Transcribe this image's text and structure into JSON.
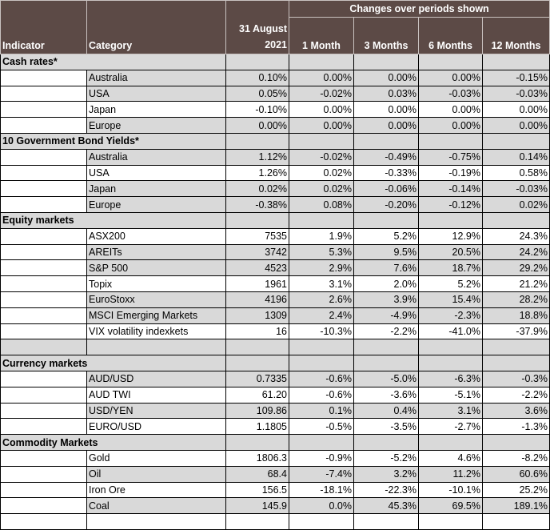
{
  "header": {
    "indicator_label": "Indicator",
    "category_label": "Category",
    "date_label_line1": "31 August",
    "date_label_line2": "2021",
    "changes_label": "Changes over periods shown",
    "periods": [
      "1 Month",
      "3 Months",
      "6 Months",
      "12 Months"
    ]
  },
  "sections": [
    {
      "title": "Cash rates*",
      "rows": [
        {
          "category": "Australia",
          "value": "0.10%",
          "changes": [
            "0.00%",
            "0.00%",
            "0.00%",
            "-0.15%"
          ]
        },
        {
          "category": "USA",
          "value": "0.05%",
          "changes": [
            "-0.02%",
            "0.03%",
            "-0.03%",
            "-0.03%"
          ]
        },
        {
          "category": "Japan",
          "value": "-0.10%",
          "changes": [
            "0.00%",
            "0.00%",
            "0.00%",
            "0.00%"
          ]
        },
        {
          "category": "Europe",
          "value": "0.00%",
          "changes": [
            "0.00%",
            "0.00%",
            "0.00%",
            "0.00%"
          ]
        }
      ]
    },
    {
      "title": "10 Government Bond Yields*",
      "rows": [
        {
          "category": "Australia",
          "value": "1.12%",
          "changes": [
            "-0.02%",
            "-0.49%",
            "-0.75%",
            "0.14%"
          ]
        },
        {
          "category": "USA",
          "value": "1.26%",
          "changes": [
            "0.02%",
            "-0.33%",
            "-0.19%",
            "0.58%"
          ]
        },
        {
          "category": "Japan",
          "value": "0.02%",
          "changes": [
            "0.02%",
            "-0.06%",
            "-0.14%",
            "-0.03%"
          ]
        },
        {
          "category": "Europe",
          "value": "-0.38%",
          "changes": [
            "0.08%",
            "-0.20%",
            "-0.12%",
            "0.02%"
          ]
        }
      ]
    },
    {
      "title": "Equity markets",
      "rows": [
        {
          "category": "ASX200",
          "value": "7535",
          "changes": [
            "1.9%",
            "5.2%",
            "12.9%",
            "24.3%"
          ]
        },
        {
          "category": "AREITs",
          "value": "3742",
          "changes": [
            "5.3%",
            "9.5%",
            "20.5%",
            "24.2%"
          ]
        },
        {
          "category": "S&P 500",
          "value": "4523",
          "changes": [
            "2.9%",
            "7.6%",
            "18.7%",
            "29.2%"
          ]
        },
        {
          "category": "Topix",
          "value": "1961",
          "changes": [
            "3.1%",
            "2.0%",
            "5.2%",
            "21.2%"
          ]
        },
        {
          "category": "EuroStoxx",
          "value": "4196",
          "changes": [
            "2.6%",
            "3.9%",
            "15.4%",
            "28.2%"
          ]
        },
        {
          "category": "MSCI Emerging Markets",
          "value": "1309",
          "changes": [
            "2.4%",
            "-4.9%",
            "-2.3%",
            "18.8%"
          ]
        },
        {
          "category": "VIX volatility indexkets",
          "value": "16",
          "changes": [
            "-10.3%",
            "-2.2%",
            "-41.0%",
            "-37.9%"
          ]
        }
      ]
    },
    {
      "title": "Currency markets",
      "rows": [
        {
          "category": "AUD/USD",
          "value": "0.7335",
          "changes": [
            "-0.6%",
            "-5.0%",
            "-6.3%",
            "-0.3%"
          ]
        },
        {
          "category": "AUD TWI",
          "value": "61.20",
          "changes": [
            "-0.6%",
            "-3.6%",
            "-5.1%",
            "-2.2%"
          ]
        },
        {
          "category": "USD/YEN",
          "value": "109.86",
          "changes": [
            "0.1%",
            "0.4%",
            "3.1%",
            "3.6%"
          ]
        },
        {
          "category": "EURO/USD",
          "value": "1.1805",
          "changes": [
            "-0.5%",
            "-3.5%",
            "-2.7%",
            "-1.3%"
          ]
        }
      ]
    },
    {
      "title": "Commodity Markets",
      "rows": [
        {
          "category": "Gold",
          "value": "1806.3",
          "changes": [
            "-0.9%",
            "-5.2%",
            "4.6%",
            "-8.2%"
          ]
        },
        {
          "category": "Oil",
          "value": "68.4",
          "changes": [
            "-7.4%",
            "3.2%",
            "11.2%",
            "60.6%"
          ]
        },
        {
          "category": "Iron Ore",
          "value": "156.5",
          "changes": [
            "-18.1%",
            "-22.3%",
            "-10.1%",
            "25.2%"
          ]
        },
        {
          "category": "Coal",
          "value": "145.9",
          "changes": [
            "0.0%",
            "45.3%",
            "69.5%",
            "189.1%"
          ]
        }
      ]
    }
  ]
}
